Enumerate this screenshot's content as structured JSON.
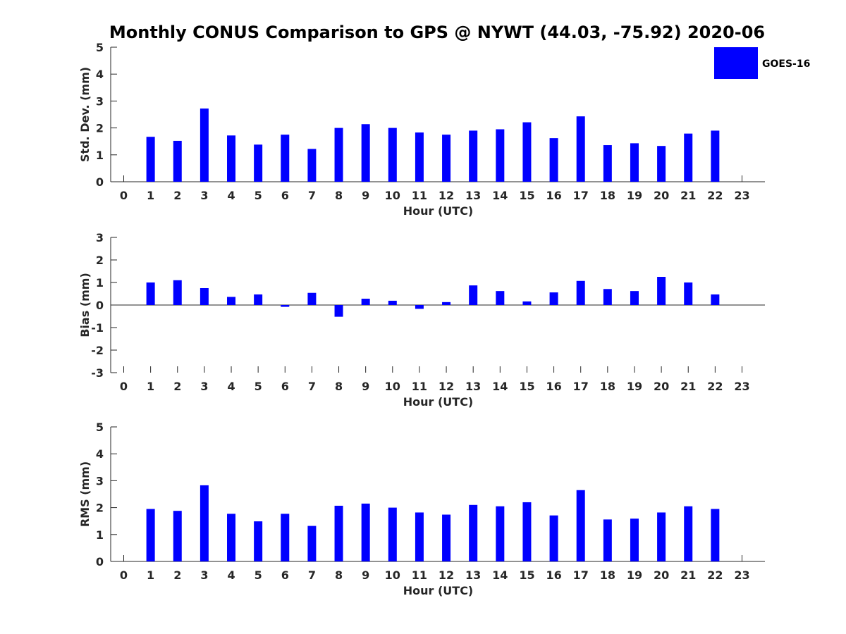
{
  "title": "Monthly CONUS Comparison to GPS @ NYWT (44.03, -75.92) 2020-06",
  "legend": {
    "label": "GOES-16",
    "color": "#0000ff"
  },
  "chart_data": [
    {
      "type": "bar",
      "name": "std-dev",
      "categories": [
        "0",
        "1",
        "2",
        "3",
        "4",
        "5",
        "6",
        "7",
        "8",
        "9",
        "10",
        "11",
        "12",
        "13",
        "14",
        "15",
        "16",
        "17",
        "18",
        "19",
        "20",
        "21",
        "22",
        "23"
      ],
      "series": [
        {
          "name": "GOES-16",
          "values": [
            null,
            1.67,
            1.52,
            2.72,
            1.72,
            1.38,
            1.75,
            1.22,
            2.0,
            2.14,
            2.0,
            1.83,
            1.75,
            1.9,
            1.95,
            2.21,
            1.62,
            2.43,
            1.36,
            1.43,
            1.33,
            1.79,
            1.9,
            null
          ]
        }
      ],
      "xlabel": "Hour (UTC)",
      "ylabel": "Std. Dev. (mm)",
      "ylim": [
        0,
        5
      ],
      "yticks": [
        "0",
        "1",
        "2",
        "3",
        "4",
        "5"
      ],
      "grid": false
    },
    {
      "type": "bar",
      "name": "bias",
      "categories": [
        "0",
        "1",
        "2",
        "3",
        "4",
        "5",
        "6",
        "7",
        "8",
        "9",
        "10",
        "11",
        "12",
        "13",
        "14",
        "15",
        "16",
        "17",
        "18",
        "19",
        "20",
        "21",
        "22",
        "23"
      ],
      "series": [
        {
          "name": "GOES-16",
          "values": [
            null,
            1.0,
            1.1,
            0.75,
            0.36,
            0.47,
            -0.08,
            0.54,
            -0.52,
            0.28,
            0.19,
            -0.17,
            0.13,
            0.87,
            0.62,
            0.16,
            0.56,
            1.07,
            0.71,
            0.62,
            1.25,
            1.0,
            0.47,
            null
          ]
        }
      ],
      "xlabel": "Hour (UTC)",
      "ylabel": "Bias (mm)",
      "ylim": [
        -3,
        3
      ],
      "yticks": [
        "-3",
        "-2",
        "-1",
        "0",
        "1",
        "2",
        "3"
      ],
      "grid": false
    },
    {
      "type": "bar",
      "name": "rms",
      "categories": [
        "0",
        "1",
        "2",
        "3",
        "4",
        "5",
        "6",
        "7",
        "8",
        "9",
        "10",
        "11",
        "12",
        "13",
        "14",
        "15",
        "16",
        "17",
        "18",
        "19",
        "20",
        "21",
        "22",
        "23"
      ],
      "series": [
        {
          "name": "GOES-16",
          "values": [
            null,
            1.95,
            1.88,
            2.83,
            1.77,
            1.49,
            1.77,
            1.32,
            2.07,
            2.15,
            2.0,
            1.82,
            1.74,
            2.1,
            2.05,
            2.2,
            1.71,
            2.65,
            1.56,
            1.59,
            1.82,
            2.05,
            1.95,
            null
          ]
        }
      ],
      "xlabel": "Hour (UTC)",
      "ylabel": "RMS (mm)",
      "ylim": [
        0,
        5
      ],
      "yticks": [
        "0",
        "1",
        "2",
        "3",
        "4",
        "5"
      ],
      "grid": false
    }
  ]
}
